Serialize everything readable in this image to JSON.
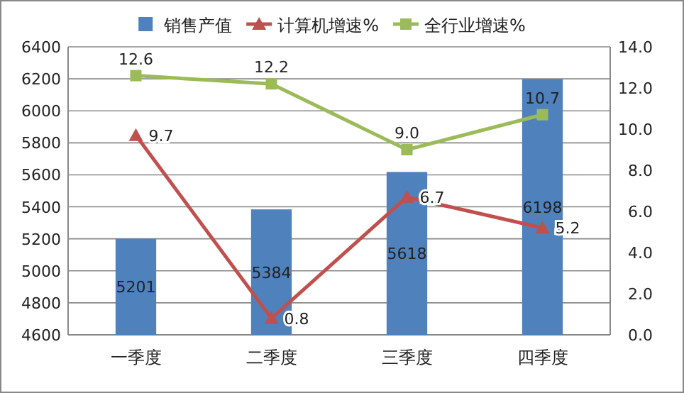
{
  "chart_data": {
    "type": "bar",
    "categories": [
      "一季度",
      "二季度",
      "三季度",
      "四季度"
    ],
    "series": [
      {
        "name": "销售产值",
        "color": "#4f81bd",
        "values": [
          5201,
          5384,
          5618,
          6198
        ],
        "value_labels": [
          "5201",
          "5384",
          "5618",
          "6198"
        ]
      },
      {
        "name": "计算机增速%",
        "type": "line",
        "axis": "y2",
        "marker": "triangle",
        "color": "#c0504d",
        "values": [
          9.7,
          0.8,
          6.7,
          5.2
        ],
        "value_labels": [
          "9.7",
          "0.8",
          "6.7",
          "5.2"
        ]
      },
      {
        "name": "全行业增速%",
        "type": "line",
        "axis": "y2",
        "marker": "square",
        "color": "#9bbb59",
        "values": [
          12.6,
          12.2,
          9.0,
          10.7
        ],
        "value_labels": [
          "12.6",
          "12.2",
          "9.0",
          "10.7"
        ]
      }
    ],
    "ylim": [
      4600,
      6400
    ],
    "yticks": [
      4600,
      4800,
      5000,
      5200,
      5400,
      5600,
      5800,
      6000,
      6200,
      6400
    ],
    "y2lim": [
      0,
      14
    ],
    "y2ticks": [
      {
        "value": 0,
        "label": "0.0"
      },
      {
        "value": 2,
        "label": "2.0"
      },
      {
        "value": 4,
        "label": "4.0"
      },
      {
        "value": 6,
        "label": "6.0"
      },
      {
        "value": 8,
        "label": "8.0"
      },
      {
        "value": 10,
        "label": "10.0"
      },
      {
        "value": 12,
        "label": "12.0"
      },
      {
        "value": 14,
        "label": "14.0"
      }
    ],
    "grid": "y",
    "legend": "top"
  }
}
